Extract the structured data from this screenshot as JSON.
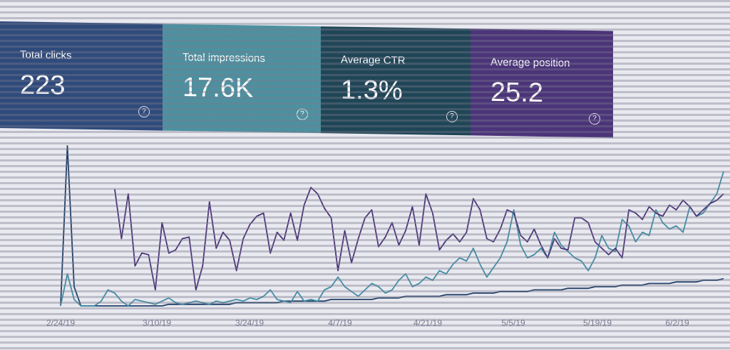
{
  "metrics": [
    {
      "label": "Total clicks",
      "value": "223",
      "color": "#2f4b7c"
    },
    {
      "label": "Total impressions",
      "value": "17.6K",
      "color": "#4d91a0"
    },
    {
      "label": "Average CTR",
      "value": "1.3%",
      "color": "#1f4656"
    },
    {
      "label": "Average position",
      "value": "25.2",
      "color": "#4b3479"
    }
  ],
  "help_icon": "?",
  "chart_data": {
    "type": "line",
    "x_tick_labels": [
      "2/24/19",
      "3/10/19",
      "3/24/19",
      "4/7/19",
      "4/21/19",
      "5/5/19",
      "5/19/19",
      "6/2/19"
    ],
    "grid": false,
    "series": [
      {
        "color": "#1f3f66",
        "values": [
          0,
          100,
          12,
          0,
          0,
          0,
          0,
          0,
          0,
          0,
          0,
          0,
          0,
          0,
          0,
          0,
          1,
          1,
          1,
          1,
          1,
          1,
          1,
          1,
          1,
          1,
          2,
          2,
          2,
          2,
          2,
          2,
          2,
          3,
          3,
          3,
          3,
          3,
          3,
          3,
          4,
          4,
          4,
          4,
          4,
          4,
          4,
          5,
          5,
          5,
          5,
          6,
          6,
          6,
          6,
          6,
          6,
          7,
          7,
          7,
          7,
          8,
          8,
          8,
          8,
          9,
          9,
          9,
          9,
          9,
          10,
          10,
          10,
          10,
          10,
          11,
          11,
          11,
          11,
          12,
          12,
          12,
          12,
          13,
          13,
          13,
          13,
          14,
          14,
          14,
          14,
          15,
          15,
          15,
          15,
          16,
          16,
          16,
          17
        ]
      },
      {
        "color": "#3f8fa5",
        "values": [
          0,
          20,
          4,
          0,
          0,
          0,
          3,
          10,
          8,
          3,
          0,
          4,
          3,
          2,
          1,
          3,
          5,
          2,
          1,
          2,
          3,
          2,
          1,
          3,
          2,
          3,
          4,
          3,
          5,
          4,
          6,
          10,
          4,
          3,
          2,
          9,
          3,
          4,
          3,
          10,
          12,
          18,
          12,
          9,
          6,
          10,
          14,
          12,
          8,
          10,
          16,
          20,
          12,
          14,
          18,
          16,
          22,
          20,
          26,
          30,
          28,
          36,
          26,
          18,
          24,
          30,
          40,
          60,
          38,
          30,
          32,
          36,
          30,
          46,
          38,
          34,
          30,
          28,
          22,
          30,
          44,
          36,
          34,
          54,
          50,
          40,
          46,
          44,
          60,
          52,
          48,
          50,
          46,
          62,
          56,
          58,
          64,
          70,
          84
        ]
      },
      {
        "color": "#4b3479",
        "values": [
          null,
          null,
          null,
          null,
          null,
          null,
          null,
          null,
          73,
          42,
          70,
          25,
          33,
          32,
          10,
          52,
          33,
          35,
          42,
          43,
          10,
          25,
          65,
          36,
          46,
          41,
          22,
          42,
          51,
          56,
          58,
          33,
          46,
          41,
          58,
          41,
          63,
          74,
          70,
          61,
          55,
          22,
          47,
          27,
          42,
          55,
          60,
          37,
          43,
          52,
          38,
          47,
          62,
          38,
          70,
          58,
          35,
          41,
          45,
          40,
          46,
          67,
          60,
          42,
          40,
          48,
          60,
          58,
          44,
          40,
          48,
          38,
          30,
          42,
          36,
          35,
          55,
          55,
          52,
          40,
          36,
          32,
          36,
          30,
          60,
          58,
          54,
          62,
          58,
          56,
          63,
          60,
          66,
          62,
          56,
          60,
          64,
          66,
          70
        ]
      }
    ]
  }
}
